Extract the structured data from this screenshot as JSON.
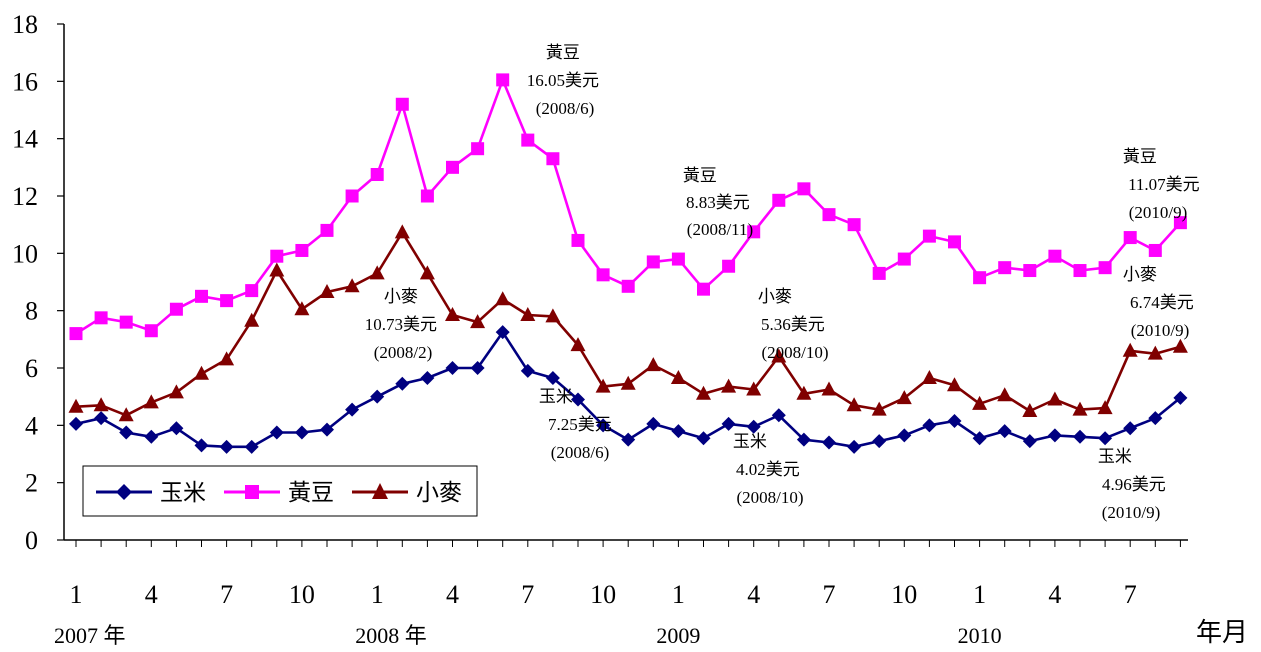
{
  "chart_data": {
    "type": "line",
    "xlabel": "年月",
    "ylim": [
      0,
      18
    ],
    "yticks": [
      0,
      2,
      4,
      6,
      8,
      10,
      12,
      14,
      16,
      18
    ],
    "grid": false,
    "legend_position": "bottom-left",
    "x_tick_labels": [
      "1",
      "4",
      "7",
      "10",
      "1",
      "4",
      "7",
      "10",
      "1",
      "4",
      "7",
      "10",
      "1",
      "4",
      "7"
    ],
    "x_tick_indices": [
      0,
      3,
      6,
      9,
      12,
      15,
      18,
      21,
      24,
      27,
      30,
      33,
      36,
      39,
      42
    ],
    "year_labels": [
      {
        "text": "2007 年",
        "index": 0
      },
      {
        "text": "2008 年",
        "index": 12
      },
      {
        "text": "2009",
        "index": 24
      },
      {
        "text": "2010",
        "index": 36
      }
    ],
    "series": [
      {
        "name": "玉米",
        "color": "#000080",
        "marker": "diamond",
        "values": [
          4.05,
          4.25,
          3.75,
          3.6,
          3.9,
          3.3,
          3.25,
          3.25,
          3.75,
          3.75,
          3.85,
          4.55,
          5.0,
          5.45,
          5.65,
          6.0,
          6.0,
          7.25,
          5.9,
          5.65,
          4.9,
          4.0,
          3.5,
          4.05,
          3.8,
          3.55,
          4.05,
          3.95,
          4.35,
          3.5,
          3.4,
          3.25,
          3.45,
          3.65,
          4.0,
          4.15,
          3.55,
          3.8,
          3.45,
          3.65,
          3.6,
          3.55,
          3.9,
          4.25,
          4.96
        ]
      },
      {
        "name": "黃豆",
        "color": "#ff00ff",
        "marker": "square",
        "values": [
          7.2,
          7.75,
          7.6,
          7.3,
          8.05,
          8.5,
          8.35,
          8.7,
          9.9,
          10.1,
          10.8,
          12.0,
          12.75,
          15.2,
          12.0,
          13.0,
          13.65,
          16.05,
          13.95,
          13.3,
          10.45,
          9.25,
          8.85,
          9.7,
          9.8,
          8.75,
          9.55,
          10.75,
          11.85,
          12.25,
          11.35,
          11.0,
          9.3,
          9.8,
          10.6,
          10.4,
          9.15,
          9.5,
          9.4,
          9.9,
          9.4,
          9.5,
          10.55,
          10.1,
          11.07
        ]
      },
      {
        "name": "小麥",
        "color": "#800000",
        "marker": "triangle",
        "values": [
          4.65,
          4.7,
          4.35,
          4.8,
          5.15,
          5.8,
          6.3,
          7.65,
          9.4,
          8.05,
          8.65,
          8.85,
          9.3,
          10.73,
          9.3,
          7.85,
          7.6,
          8.4,
          7.85,
          7.8,
          6.8,
          5.35,
          5.45,
          6.1,
          5.65,
          5.1,
          5.35,
          5.25,
          6.4,
          5.1,
          5.25,
          4.7,
          4.55,
          4.95,
          5.65,
          5.4,
          4.75,
          5.05,
          4.5,
          4.9,
          4.55,
          4.6,
          6.6,
          6.5,
          6.74
        ]
      }
    ],
    "annotations": [
      {
        "lines": [
          "黃豆",
          "16.05美元",
          "(2008/6)"
        ]
      },
      {
        "lines": [
          "黃豆",
          "8.83美元",
          "(2008/11)"
        ]
      },
      {
        "lines": [
          "黃豆",
          "11.07美元",
          "(2010/9)"
        ]
      },
      {
        "lines": [
          "小麥",
          "10.73美元",
          "(2008/2)"
        ]
      },
      {
        "lines": [
          "小麥",
          "5.36美元",
          "(2008/10)"
        ]
      },
      {
        "lines": [
          "小麥",
          "6.74美元",
          "(2010/9)"
        ]
      },
      {
        "lines": [
          "玉米",
          "7.25美元",
          "(2008/6)"
        ]
      },
      {
        "lines": [
          "玉米",
          "4.02美元",
          "(2008/10)"
        ]
      },
      {
        "lines": [
          "玉米",
          "4.96美元",
          "(2010/9)"
        ]
      }
    ]
  }
}
